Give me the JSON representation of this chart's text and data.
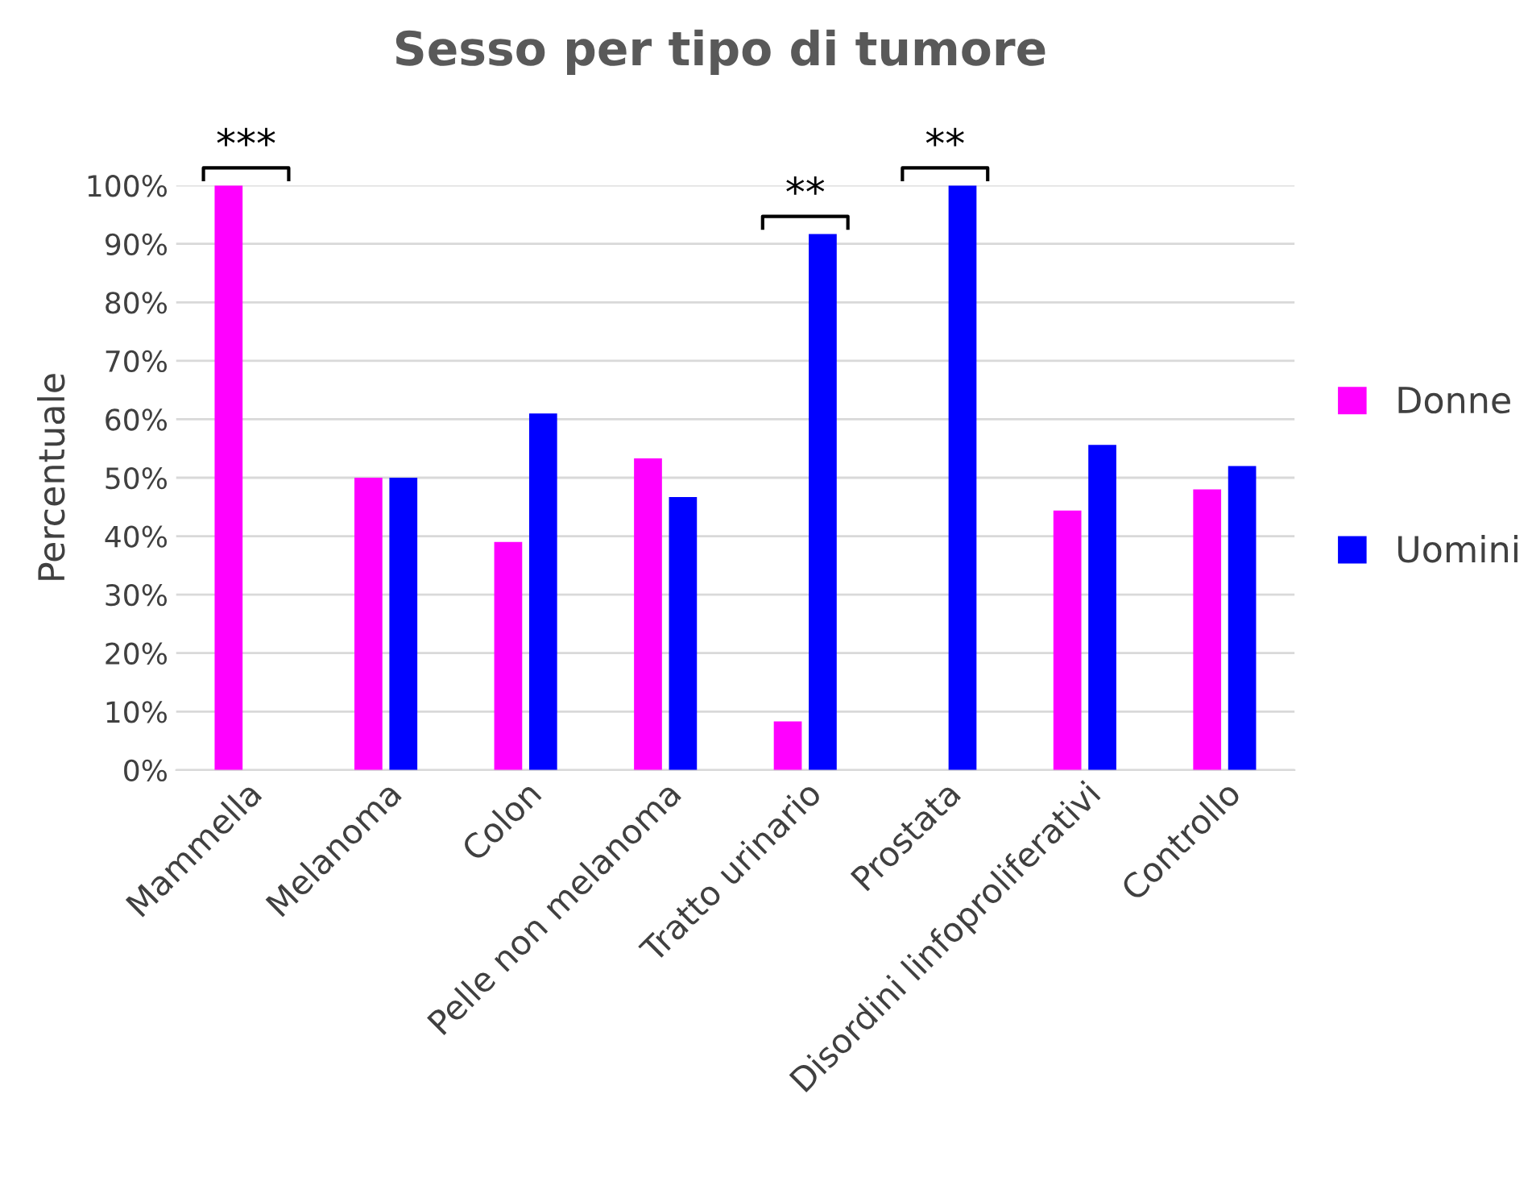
{
  "chart_data": {
    "type": "bar",
    "title": "Sesso per tipo di tumore",
    "ylabel": "Percentuale",
    "categories": [
      "Mammella",
      "Melanoma",
      "Colon",
      "Pelle non melanoma",
      "Tratto urinario",
      "Prostata",
      "Disordini linfoproliferativi",
      "Controllo"
    ],
    "series": [
      {
        "name": "Donne",
        "color": "#ff00ff",
        "values": [
          100,
          50,
          39,
          53.3,
          8.3,
          0,
          44.4,
          48
        ]
      },
      {
        "name": "Uomini",
        "color": "#0000ff",
        "values": [
          0,
          50,
          61,
          46.7,
          91.7,
          100,
          55.6,
          52
        ]
      }
    ],
    "ylim": [
      0,
      100
    ],
    "yticks": [
      {
        "value": 0,
        "label": "0%"
      },
      {
        "value": 10,
        "label": "10%"
      },
      {
        "value": 20,
        "label": "20%"
      },
      {
        "value": 30,
        "label": "30%"
      },
      {
        "value": 40,
        "label": "40%"
      },
      {
        "value": 50,
        "label": "50%"
      },
      {
        "value": 60,
        "label": "60%"
      },
      {
        "value": 70,
        "label": "70%"
      },
      {
        "value": 80,
        "label": "80%"
      },
      {
        "value": 90,
        "label": "90%"
      },
      {
        "value": 100,
        "label": "100%"
      }
    ],
    "grid": "y",
    "legend": "right",
    "annotations": [
      {
        "text": "***",
        "x": "Mammella",
        "y": 100
      },
      {
        "text": "**",
        "x": "Tratto urinario",
        "y": 91.7
      },
      {
        "text": "**",
        "x": "Prostata",
        "y": 100
      }
    ]
  }
}
